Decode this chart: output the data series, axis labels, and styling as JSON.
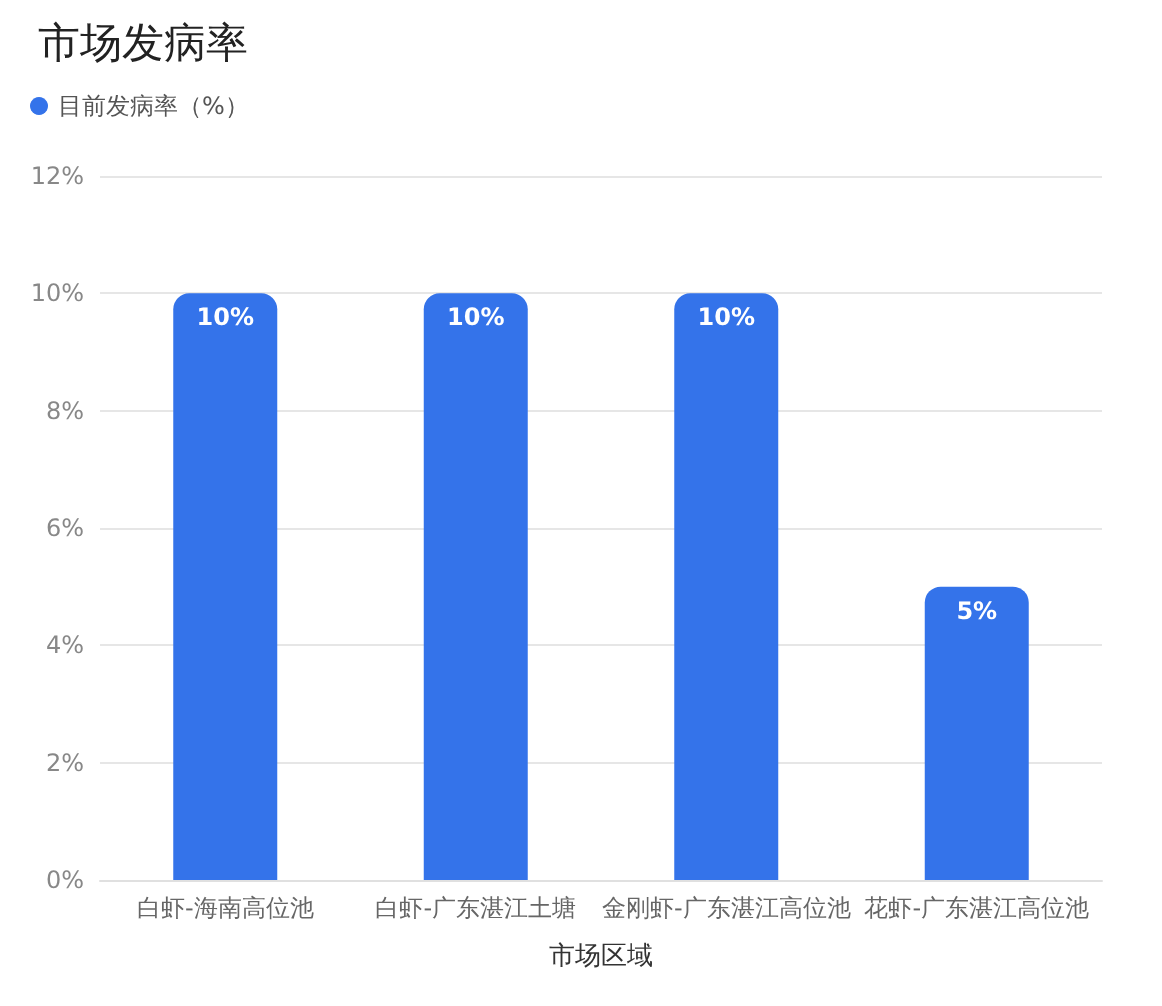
{
  "chart_data": {
    "type": "bar",
    "title": "市场发病率",
    "xlabel": "市场区域",
    "categories": [
      "白虾-海南高位池",
      "白虾-广东湛江土塘",
      "金刚虾-广东湛江高位池",
      "花虾-广东湛江高位池"
    ],
    "series": [
      {
        "name": "目前发病率（%）",
        "color": "#3473ea",
        "values": [
          10,
          10,
          10,
          5
        ],
        "value_labels": [
          "10%",
          "10%",
          "10%",
          "5%"
        ]
      }
    ],
    "ylim": [
      0,
      12
    ],
    "yticks": [
      {
        "value": 0,
        "label": "0%"
      },
      {
        "value": 2,
        "label": "2%"
      },
      {
        "value": 4,
        "label": "4%"
      },
      {
        "value": 6,
        "label": "6%"
      },
      {
        "value": 8,
        "label": "8%"
      },
      {
        "value": 10,
        "label": "10%"
      },
      {
        "value": 12,
        "label": "12%"
      }
    ],
    "grid": "y",
    "legend": "top left"
  }
}
